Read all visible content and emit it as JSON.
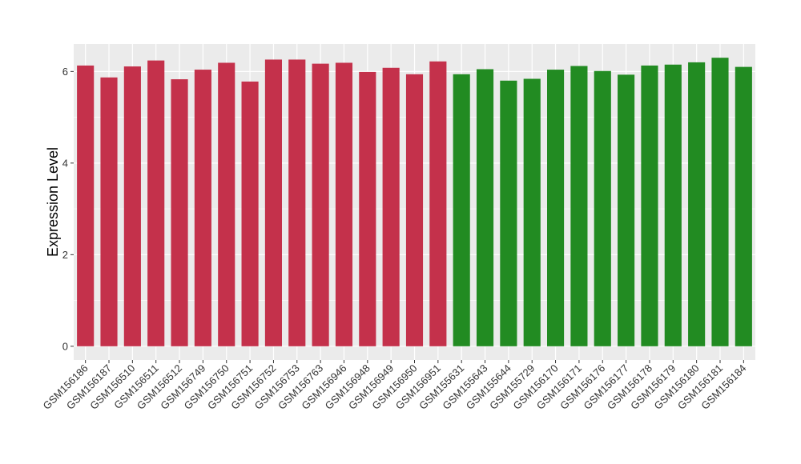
{
  "chart_data": {
    "type": "bar",
    "ylabel": "Expression Level",
    "xlabel": "",
    "ylim": [
      -0.3,
      6.6
    ],
    "yticks": [
      0,
      2,
      4,
      6
    ],
    "grid": true,
    "colors": {
      "group_1": "#c4314b",
      "group_2": "#228b22",
      "panel": "#ebebeb",
      "grid": "#ffffff"
    },
    "categories": [
      "GSM156186",
      "GSM156187",
      "GSM156510",
      "GSM156511",
      "GSM156512",
      "GSM156749",
      "GSM156750",
      "GSM156751",
      "GSM156752",
      "GSM156753",
      "GSM156763",
      "GSM156946",
      "GSM156948",
      "GSM156949",
      "GSM156950",
      "GSM156951",
      "GSM155631",
      "GSM155643",
      "GSM155644",
      "GSM155729",
      "GSM156170",
      "GSM156171",
      "GSM156176",
      "GSM156177",
      "GSM156178",
      "GSM156179",
      "GSM156180",
      "GSM156181",
      "GSM156184"
    ],
    "values": [
      6.13,
      5.87,
      6.11,
      6.24,
      5.83,
      6.04,
      6.19,
      5.78,
      6.26,
      6.26,
      6.17,
      6.19,
      5.99,
      6.08,
      5.94,
      6.22,
      5.94,
      6.05,
      5.8,
      5.84,
      6.04,
      6.12,
      6.01,
      5.93,
      6.13,
      6.15,
      6.2,
      6.3,
      6.1
    ],
    "groups": [
      1,
      1,
      1,
      1,
      1,
      1,
      1,
      1,
      1,
      1,
      1,
      1,
      1,
      1,
      1,
      1,
      2,
      2,
      2,
      2,
      2,
      2,
      2,
      2,
      2,
      2,
      2,
      2,
      2
    ]
  }
}
